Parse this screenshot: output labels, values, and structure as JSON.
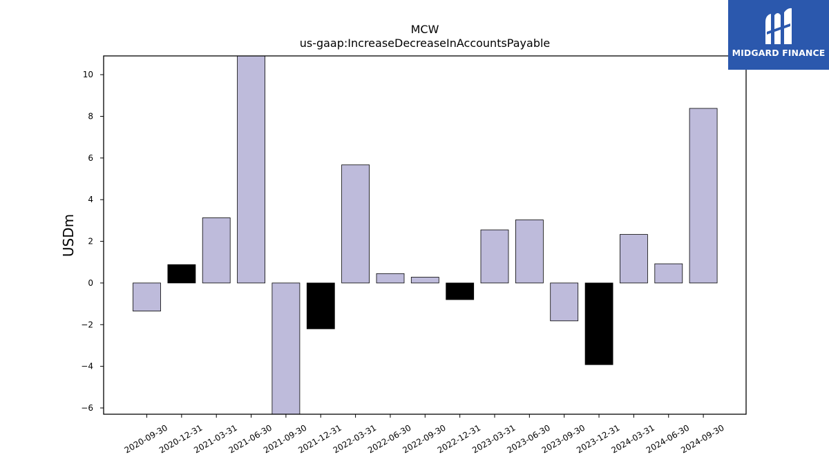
{
  "chart_data": {
    "type": "bar",
    "title": "MCW",
    "subtitle": "us-gaap:IncreaseDecreaseInAccountsPayable",
    "ylabel": "USDm",
    "xlabel": "",
    "ylim": [
      -6.3,
      10.9
    ],
    "yticks": [
      -6,
      -4,
      -2,
      0,
      2,
      4,
      6,
      8,
      10
    ],
    "grid": false,
    "categories": [
      "2020-09-30",
      "2020-12-31",
      "2021-03-31",
      "2021-06-30",
      "2021-09-30",
      "2021-12-31",
      "2022-03-31",
      "2022-06-30",
      "2022-09-30",
      "2022-12-31",
      "2023-03-31",
      "2023-06-30",
      "2023-09-30",
      "2023-12-31",
      "2024-03-31",
      "2024-06-30",
      "2024-09-30"
    ],
    "values": [
      -1.35,
      0.88,
      3.13,
      10.9,
      -6.3,
      -2.2,
      5.67,
      0.45,
      0.28,
      -0.8,
      2.55,
      3.03,
      -1.82,
      -3.92,
      2.33,
      0.92,
      8.38
    ],
    "bar_colors": [
      "#bebbdb",
      "#000000",
      "#bebbdb",
      "#bebbdb",
      "#bebbdb",
      "#000000",
      "#bebbdb",
      "#bebbdb",
      "#bebbdb",
      "#000000",
      "#bebbdb",
      "#bebbdb",
      "#bebbdb",
      "#000000",
      "#bebbdb",
      "#bebbdb",
      "#bebbdb"
    ]
  },
  "logo": {
    "text": "MIDGARD FINANCE",
    "background": "#2b58ad"
  }
}
